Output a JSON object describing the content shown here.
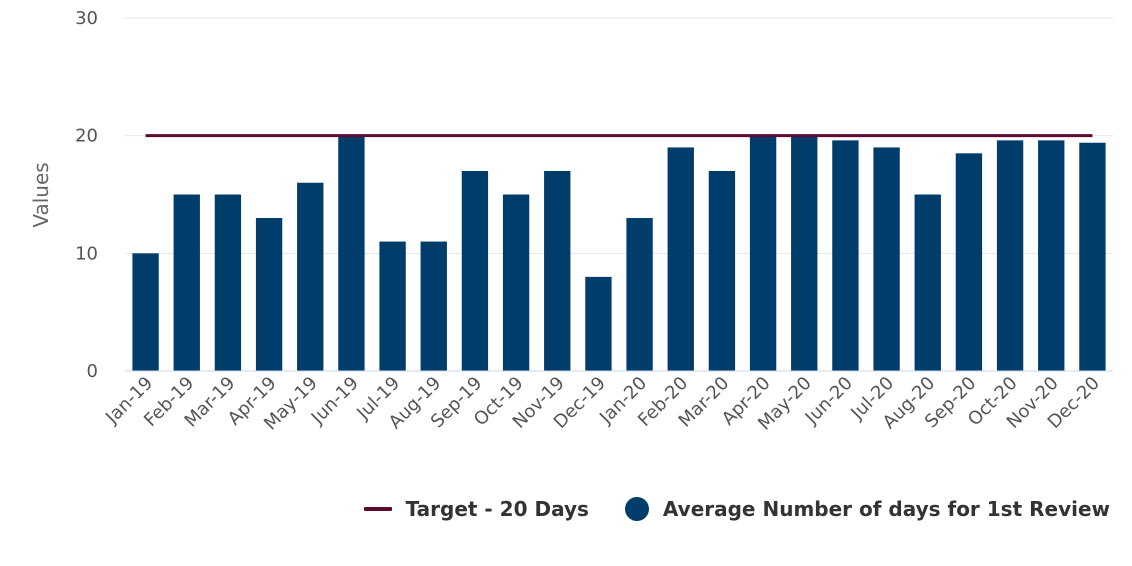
{
  "chart_data": {
    "type": "bar",
    "title": "",
    "xlabel": "",
    "ylabel": "Values",
    "ylim": [
      0,
      30
    ],
    "yticks": [
      0,
      10,
      20,
      30
    ],
    "grid": true,
    "legend_position": "bottom-right",
    "categories": [
      "Jan-19",
      "Feb-19",
      "Mar-19",
      "Apr-19",
      "May-19",
      "Jun-19",
      "Jul-19",
      "Aug-19",
      "Sep-19",
      "Oct-19",
      "Nov-19",
      "Dec-19",
      "Jan-20",
      "Feb-20",
      "Mar-20",
      "Apr-20",
      "May-20",
      "Jun-20",
      "Jul-20",
      "Aug-20",
      "Sep-20",
      "Oct-20",
      "Nov-20",
      "Dec-20"
    ],
    "series": [
      {
        "name": "Average Number of days for 1st Review",
        "type": "bar",
        "color": "#003d6b",
        "values": [
          10,
          15,
          15,
          13,
          16,
          20,
          11,
          11,
          17,
          15,
          17,
          8,
          13,
          19,
          17,
          20,
          20,
          19.6,
          19,
          15,
          18.5,
          19.6,
          19.6,
          19.4
        ]
      },
      {
        "name": "Target - 20 Days",
        "type": "line",
        "color": "#5c0a30",
        "values": [
          20,
          20,
          20,
          20,
          20,
          20,
          20,
          20,
          20,
          20,
          20,
          20,
          20,
          20,
          20,
          20,
          20,
          20,
          20,
          20,
          20,
          20,
          20,
          20
        ]
      }
    ]
  },
  "legend": {
    "target_label": "Target - 20 Days",
    "average_label": "Average Number of days for 1st Review"
  }
}
